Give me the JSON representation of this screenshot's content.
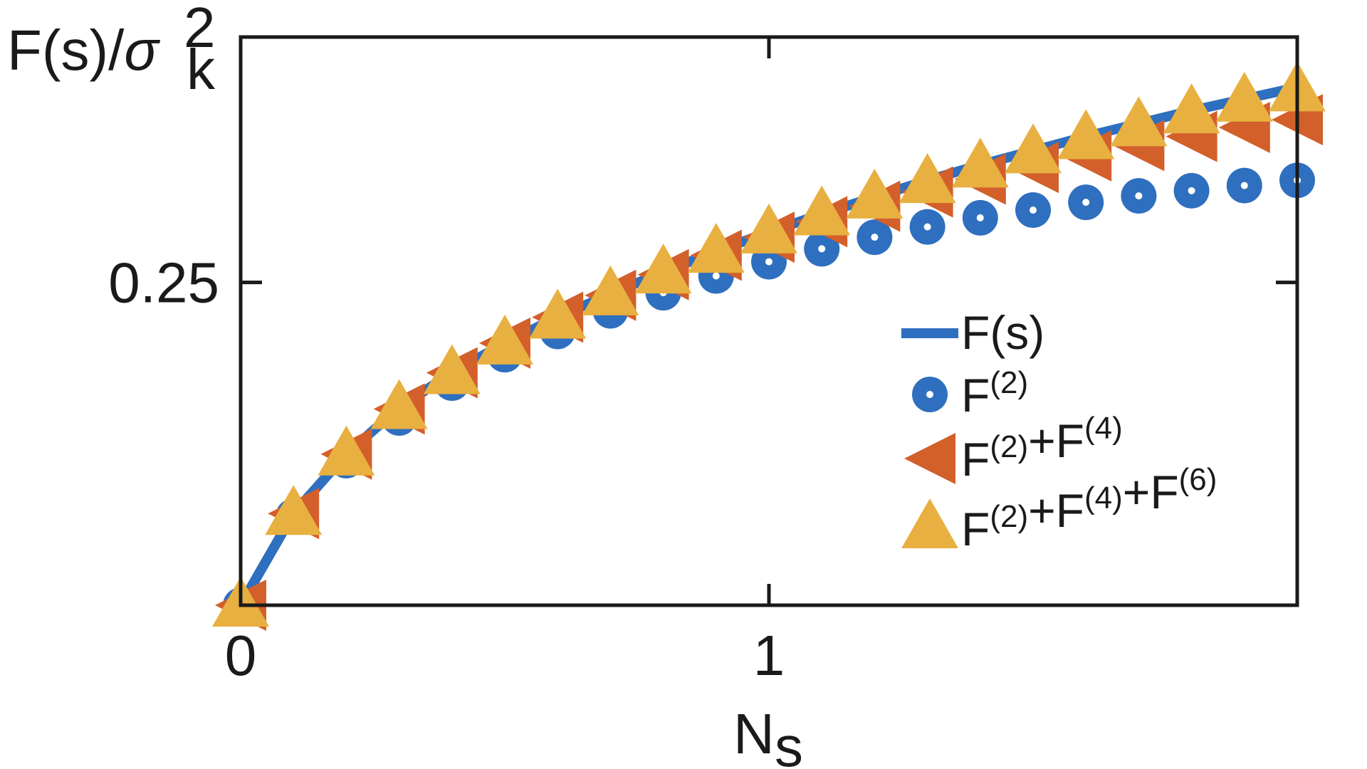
{
  "chart_data": {
    "type": "line",
    "title": "",
    "xlabel": {
      "main": "N",
      "sub": "s"
    },
    "ylabel": {
      "main": "F(s)/",
      "sym": "σ",
      "sup": "2",
      "sub": "k"
    },
    "xlim": [
      0,
      2
    ],
    "ylim": [
      0,
      0.44
    ],
    "xticks": [
      0,
      1
    ],
    "xtick_labels": [
      "0",
      "1"
    ],
    "yticks": [
      0.25
    ],
    "ytick_labels": [
      "0.25"
    ],
    "grid": false,
    "legend_position": "bottom-right",
    "x": [
      0,
      0.1,
      0.2,
      0.3,
      0.4,
      0.5,
      0.6,
      0.7,
      0.8,
      0.9,
      1.0,
      1.1,
      1.2,
      1.3,
      1.4,
      1.5,
      1.6,
      1.7,
      1.8,
      1.9,
      2.0
    ],
    "series": [
      {
        "name": "F(s)",
        "marker": "line",
        "color": "#2f6fbf",
        "values": [
          0.0,
          0.071,
          0.117,
          0.153,
          0.18,
          0.203,
          0.223,
          0.241,
          0.258,
          0.274,
          0.289,
          0.303,
          0.316,
          0.329,
          0.341,
          0.352,
          0.363,
          0.373,
          0.383,
          0.392,
          0.401
        ]
      },
      {
        "name": "F^(2)",
        "marker": "circle",
        "color": "#2f6fbf",
        "values": [
          0.0,
          0.069,
          0.112,
          0.145,
          0.172,
          0.194,
          0.212,
          0.228,
          0.242,
          0.255,
          0.266,
          0.276,
          0.285,
          0.293,
          0.3,
          0.306,
          0.312,
          0.317,
          0.321,
          0.325,
          0.329
        ]
      },
      {
        "name": "F^(2)+F^(4)",
        "marker": "triangle-left",
        "color": "#d35f2a",
        "values": [
          0.0,
          0.071,
          0.117,
          0.152,
          0.18,
          0.203,
          0.223,
          0.24,
          0.256,
          0.271,
          0.285,
          0.297,
          0.309,
          0.32,
          0.33,
          0.339,
          0.348,
          0.356,
          0.363,
          0.37,
          0.376
        ]
      },
      {
        "name": "F^(2)+F^(4)+F^(6)",
        "marker": "triangle-up",
        "color": "#e8b040",
        "values": [
          0.0,
          0.071,
          0.117,
          0.153,
          0.18,
          0.203,
          0.223,
          0.241,
          0.258,
          0.274,
          0.289,
          0.303,
          0.316,
          0.328,
          0.34,
          0.351,
          0.362,
          0.372,
          0.382,
          0.391,
          0.399
        ]
      }
    ],
    "legend": [
      {
        "base": "F(s)",
        "terms": []
      },
      {
        "base": "",
        "terms": [
          {
            "b": "F",
            "sup": "(2)"
          }
        ]
      },
      {
        "base": "",
        "terms": [
          {
            "b": "F",
            "sup": "(2)"
          },
          {
            "op": "+"
          },
          {
            "b": "F",
            "sup": "(4)"
          }
        ]
      },
      {
        "base": "",
        "terms": [
          {
            "b": "F",
            "sup": "(2)"
          },
          {
            "op": "+"
          },
          {
            "b": "F",
            "sup": "(4)"
          },
          {
            "op": "+"
          },
          {
            "b": "F",
            "sup": "(6)"
          }
        ]
      }
    ]
  }
}
